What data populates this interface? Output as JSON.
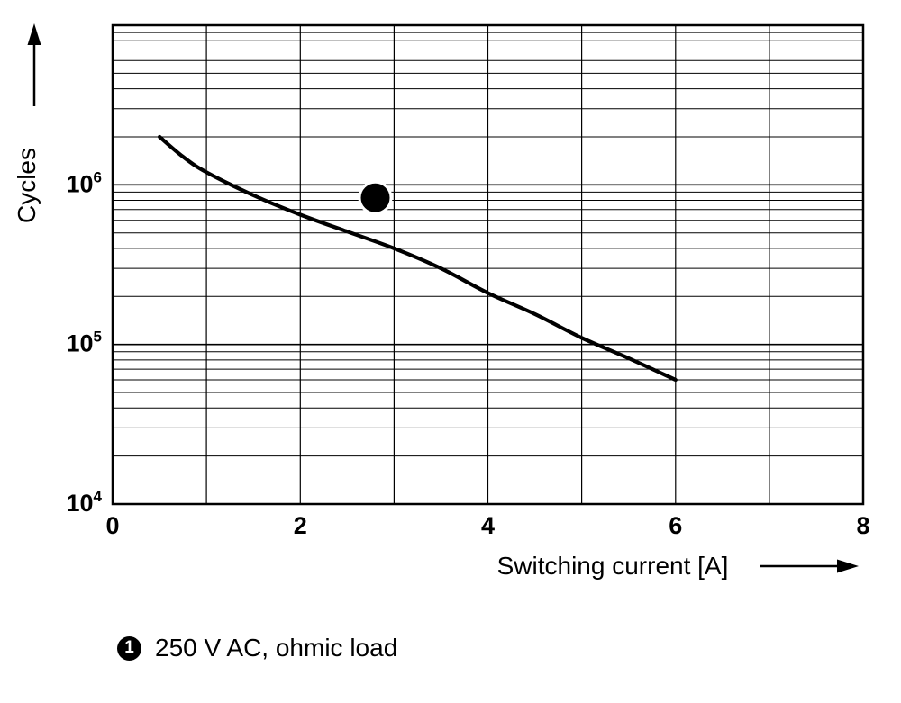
{
  "figure": {
    "background": "#ffffff",
    "ink": "#000000"
  },
  "chart_data": {
    "type": "line",
    "title": "",
    "xlabel": "Switching current [A]",
    "ylabel": "Cycles",
    "x_range": [
      0,
      8
    ],
    "x_grid_step": 1,
    "x_tick_labels": [
      0,
      2,
      4,
      6,
      8
    ],
    "y_scale": "log",
    "y_range_exponents": [
      4,
      7
    ],
    "y_tick_exponents": [
      4,
      5,
      6
    ],
    "grid": true,
    "legend_position": "below",
    "series": [
      {
        "name": "250 V AC, ohmic load",
        "marker_label": "1",
        "x": [
          0.5,
          0.75,
          1,
          1.5,
          2,
          2.5,
          3,
          3.5,
          4,
          4.5,
          5,
          5.5,
          6
        ],
        "y": [
          2000000,
          1500000,
          1200000,
          860000,
          650000,
          510000,
          400000,
          300000,
          210000,
          155000,
          110000,
          82000,
          60000
        ]
      }
    ],
    "curve_marker": {
      "label": "1",
      "x": 2.8,
      "y": 830000
    },
    "legend": {
      "marker_label": "1",
      "text": "250 V AC, ohmic load"
    }
  }
}
